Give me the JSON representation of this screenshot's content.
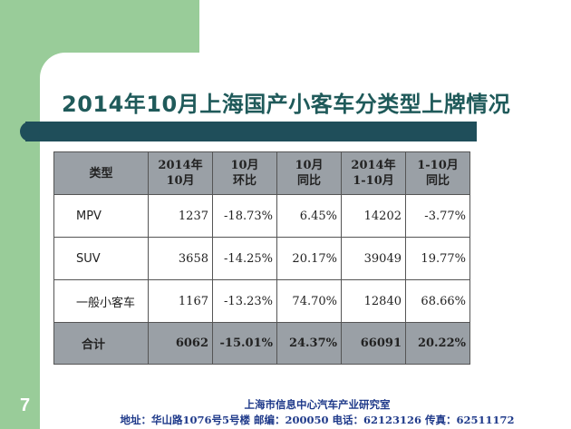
{
  "slide": {
    "title": "2014年10月上海国产小客车分类型上牌情况",
    "page_number": "7"
  },
  "table": {
    "headers": [
      [
        "类型"
      ],
      [
        "2014年",
        "10月"
      ],
      [
        "10月",
        "环比"
      ],
      [
        "10月",
        "同比"
      ],
      [
        "2014年",
        "1-10月"
      ],
      [
        "1-10月",
        "同比"
      ]
    ],
    "rows": [
      [
        "MPV",
        "1237",
        "-18.73%",
        "6.45%",
        "14202",
        "-3.77%"
      ],
      [
        "SUV",
        "3658",
        "-14.25%",
        "20.17%",
        "39049",
        "19.77%"
      ],
      [
        "一般小客车",
        "1167",
        "-13.23%",
        "74.70%",
        "12840",
        "68.66%"
      ],
      [
        "合计",
        "6062",
        "-15.01%",
        "24.37%",
        "66091",
        "20.22%"
      ]
    ]
  },
  "footer": {
    "org": "上海市信息中心汽车产业研究室",
    "contact": "地址：华山路1076号5号楼  邮编：200050  电话：62123126  传真：62511172"
  },
  "colors": {
    "side_band": "#99cc99",
    "title_text": "#1f5a5a",
    "title_bar": "#1f4e5a",
    "table_header_bg": "#9aa0a6",
    "footer_text": "#1f3a8a"
  }
}
